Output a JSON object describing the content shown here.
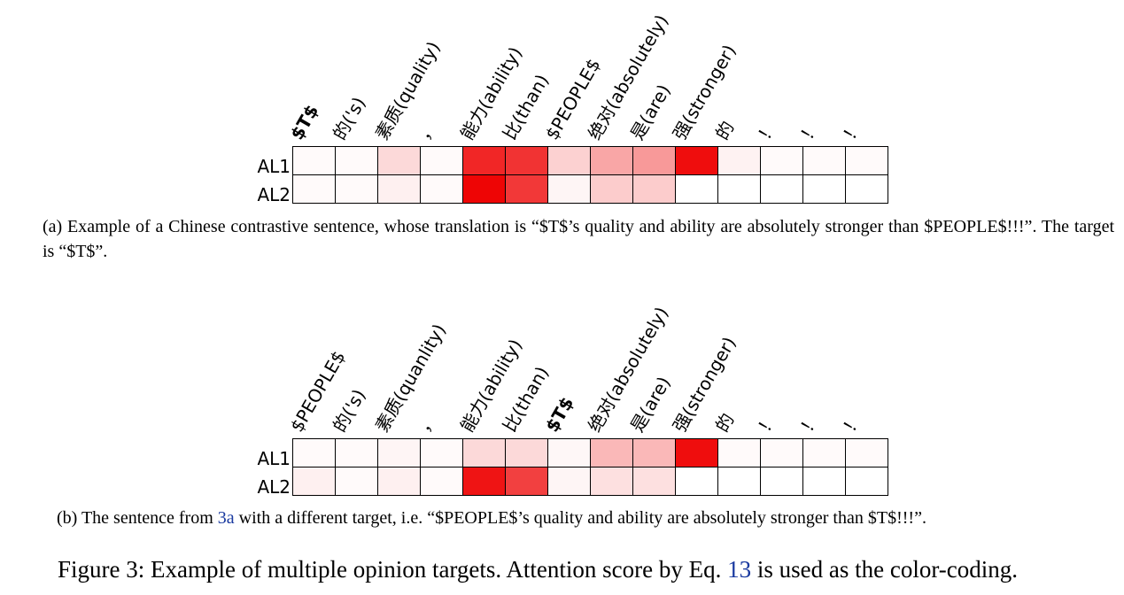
{
  "panel_a": {
    "tokens": [
      "$T$",
      "的('s)",
      "素质(quality)",
      "，",
      "能力(ability)",
      "比(than)",
      "$PEOPLE$",
      "绝对(absolutely)",
      "是(are)",
      "强(stronger)",
      "的",
      "！",
      "！",
      "！"
    ],
    "bold_index": 0,
    "row_labels": [
      "AL1",
      "AL2"
    ],
    "rows": [
      [
        0.02,
        0.02,
        0.15,
        0.02,
        0.85,
        0.8,
        0.18,
        0.35,
        0.4,
        0.95,
        0.05,
        0.02,
        0.02,
        0.02
      ],
      [
        0.02,
        0.02,
        0.06,
        0.02,
        0.98,
        0.78,
        0.04,
        0.2,
        0.2,
        0.0,
        0.0,
        0.0,
        0.0,
        0.0
      ]
    ],
    "caption": "(a) Example of a Chinese contrastive sentence, whose translation is “$T$’s quality and ability are absolutely stronger than $PEOPLE$!!!”. The target is “$T$”."
  },
  "panel_b": {
    "tokens": [
      "$PEOPLE$",
      "的('s)",
      "素质(quanlity)",
      "，",
      "能力(ability)",
      "比(than)",
      "$T$",
      "绝对(absolutely)",
      "是(are)",
      "强(stronger)",
      "的",
      "！",
      "！",
      "！"
    ],
    "bold_index": 6,
    "row_labels": [
      "AL1",
      "AL2"
    ],
    "rows": [
      [
        0.02,
        0.02,
        0.04,
        0.02,
        0.15,
        0.15,
        0.03,
        0.28,
        0.28,
        0.95,
        0.02,
        0.02,
        0.02,
        0.02
      ],
      [
        0.06,
        0.02,
        0.06,
        0.02,
        0.92,
        0.75,
        0.04,
        0.12,
        0.12,
        0.0,
        0.0,
        0.0,
        0.0,
        0.0
      ]
    ],
    "caption_before": "(b) The sentence from ",
    "caption_ref": "3a",
    "caption_after": " with a different target, i.e. “$PEOPLE$’s quality and ability are absolutely stronger than $T$!!!”."
  },
  "figure_caption": {
    "before": "Figure 3: Example of multiple opinion targets. Attention score by Eq. ",
    "ref": "13",
    "after": " is used as the color-coding."
  },
  "colors": {
    "heat_max": "#ee0000",
    "heat_min": "#ffffff",
    "ref_link": "#1a3aa0"
  }
}
